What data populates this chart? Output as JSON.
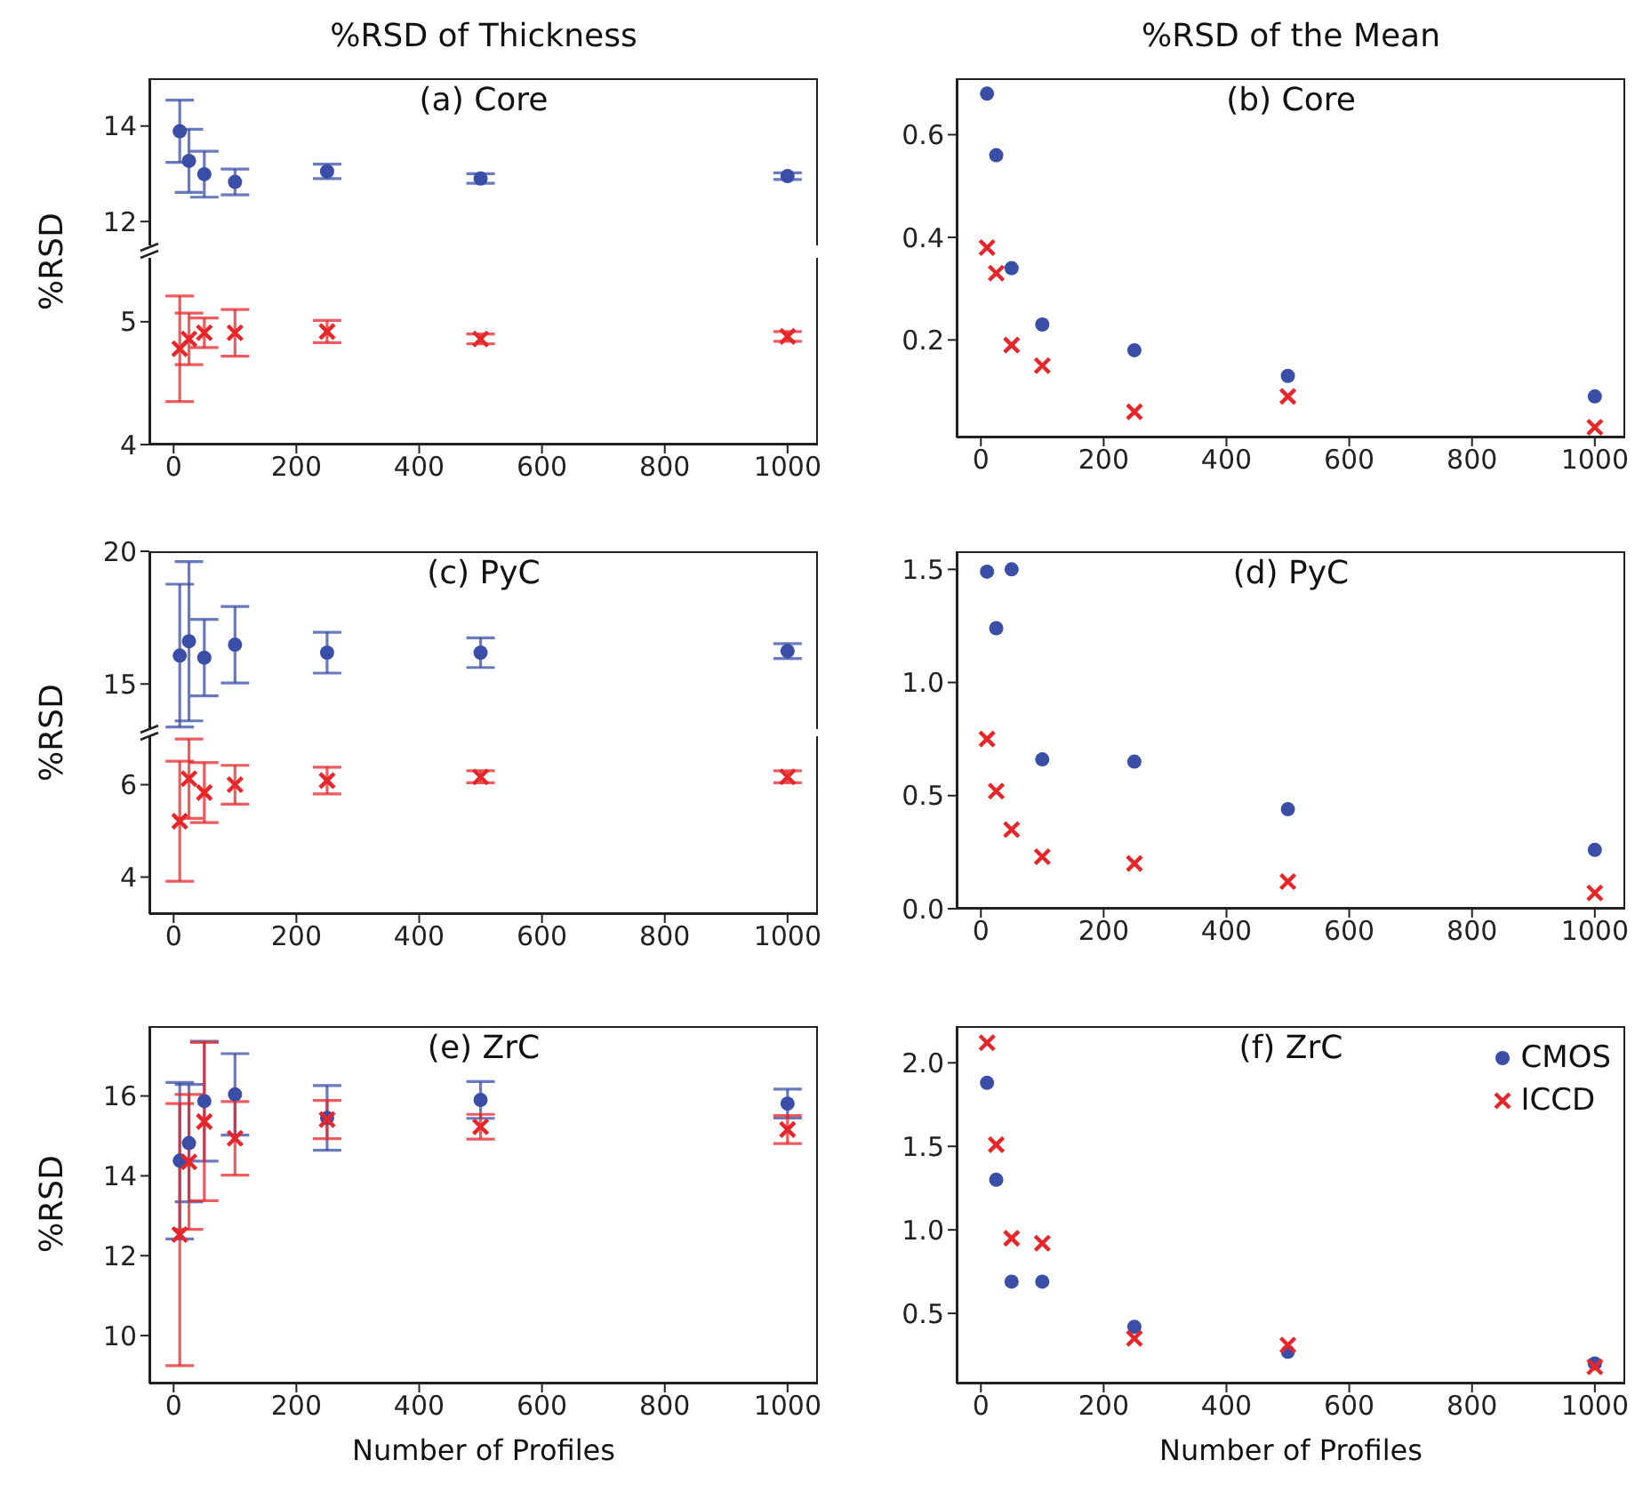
{
  "chart_data": [
    {
      "type": "scatter",
      "title": "(a) Core",
      "annotations": [
        "%RSD of Thickness"
      ],
      "x": [
        10,
        25,
        50,
        100,
        250,
        500,
        1000
      ],
      "xlim": [
        -39.5,
        1049.5
      ],
      "xticks": [
        0,
        200,
        400,
        600,
        800,
        1000
      ],
      "ylim": [
        11.5,
        15
      ],
      "yticks": [
        12,
        14
      ],
      "tick_labels": "y",
      "series": [
        {
          "color": "#3a4ea8",
          "marker": "circle",
          "values": [
            13.89,
            13.27,
            12.99,
            12.83,
            13.05,
            12.9,
            12.95
          ],
          "errors": [
            0.65,
            0.66,
            0.48,
            0.27,
            0.15,
            0.1,
            0.07
          ]
        }
      ]
    },
    {
      "type": "scatter",
      "ylabel": "%RSD",
      "x": [
        10,
        25,
        50,
        100,
        250,
        500,
        1000
      ],
      "xlim": [
        -39.5,
        1049.5
      ],
      "xticks": [
        0,
        200,
        400,
        600,
        800,
        1000
      ],
      "ylim": [
        4,
        5.52
      ],
      "yticks": [
        4,
        5
      ],
      "series": [
        {
          "color": "#e8262a",
          "marker": "cross",
          "values": [
            4.78,
            4.86,
            4.91,
            4.91,
            4.92,
            4.86,
            4.88
          ],
          "errors": [
            0.43,
            0.21,
            0.12,
            0.19,
            0.09,
            0.04,
            0.04
          ]
        }
      ]
    },
    {
      "type": "scatter",
      "title": "(b) Core",
      "annotations": [
        "%RSD of the Mean"
      ],
      "x": [
        10,
        25,
        50,
        100,
        250,
        500,
        1000
      ],
      "xlim": [
        -39.5,
        1049.5
      ],
      "xticks": [
        0,
        200,
        400,
        600,
        800,
        1000
      ],
      "ylim": [
        0.01,
        0.71
      ],
      "yticks": [
        0.2,
        0.4,
        0.6
      ],
      "series": [
        {
          "color": "#3a4ea8",
          "marker": "circle",
          "values": [
            0.68,
            0.56,
            0.34,
            0.23,
            0.18,
            0.13,
            0.09
          ]
        },
        {
          "color": "#e8262a",
          "marker": "cross",
          "values": [
            0.38,
            0.33,
            0.19,
            0.15,
            0.06,
            0.09,
            0.03
          ]
        }
      ]
    },
    {
      "type": "scatter",
      "title": "(c) PyC",
      "x": [
        10,
        25,
        50,
        100,
        250,
        500,
        1000
      ],
      "xlim": [
        -39.5,
        1049.5
      ],
      "xticks": [
        0,
        200,
        400,
        600,
        800,
        1000
      ],
      "ylim": [
        13.3,
        20
      ],
      "yticks": [
        15,
        20
      ],
      "tick_labels": "y",
      "series": [
        {
          "color": "#3a4ea8",
          "marker": "circle",
          "values": [
            16.07,
            16.61,
            15.99,
            16.48,
            16.18,
            16.18,
            16.24
          ],
          "errors": [
            2.69,
            3.0,
            1.44,
            1.44,
            0.77,
            0.56,
            0.28
          ]
        }
      ]
    },
    {
      "type": "scatter",
      "ylabel": "%RSD",
      "x": [
        10,
        25,
        50,
        100,
        250,
        500,
        1000
      ],
      "xlim": [
        -39.5,
        1049.5
      ],
      "xticks": [
        0,
        200,
        400,
        600,
        800,
        1000
      ],
      "ylim": [
        3.2,
        7.05
      ],
      "yticks": [
        4,
        6
      ],
      "series": [
        {
          "color": "#e8262a",
          "marker": "cross",
          "values": [
            5.21,
            6.13,
            5.83,
            6.0,
            6.09,
            6.17,
            6.17
          ],
          "errors": [
            1.3,
            0.86,
            0.65,
            0.42,
            0.29,
            0.13,
            0.13
          ]
        }
      ]
    },
    {
      "type": "scatter",
      "title": "(d) PyC",
      "x": [
        10,
        25,
        50,
        100,
        250,
        500,
        1000
      ],
      "xlim": [
        -39.5,
        1049.5
      ],
      "xticks": [
        0,
        200,
        400,
        600,
        800,
        1000
      ],
      "ylim": [
        0,
        1.58
      ],
      "yticks": [
        {
          "value": 0,
          "label": "0.0"
        },
        0.5,
        {
          "value": 1,
          "label": "1.0"
        },
        1.5
      ],
      "series": [
        {
          "color": "#3a4ea8",
          "marker": "circle",
          "values": [
            1.49,
            1.24,
            1.5,
            0.66,
            0.65,
            0.44,
            0.26
          ]
        },
        {
          "color": "#e8262a",
          "marker": "cross",
          "values": [
            0.75,
            0.52,
            0.35,
            0.23,
            0.2,
            0.12,
            0.07
          ]
        }
      ]
    },
    {
      "type": "scatter",
      "title": "(e) ZrC",
      "xlabel": "Number of Profiles",
      "ylabel": "%RSD",
      "x": [
        10,
        25,
        50,
        100,
        250,
        500,
        1000
      ],
      "xlim": [
        -39.5,
        1049.5
      ],
      "xticks": [
        0,
        200,
        400,
        600,
        800,
        1000
      ],
      "ylim": [
        8.8,
        17.75
      ],
      "yticks": [
        10,
        12,
        14,
        16
      ],
      "series": [
        {
          "color": "#3a4ea8",
          "marker": "circle",
          "values": [
            14.38,
            14.82,
            15.87,
            16.04,
            15.45,
            15.9,
            15.81
          ],
          "errors": [
            1.96,
            1.47,
            1.5,
            1.02,
            0.81,
            0.46,
            0.36
          ]
        },
        {
          "color": "#e8262a",
          "marker": "cross",
          "values": [
            12.53,
            14.35,
            15.36,
            14.94,
            15.41,
            15.23,
            15.16
          ],
          "errors": [
            3.28,
            1.69,
            1.98,
            0.92,
            0.48,
            0.31,
            0.35
          ]
        }
      ]
    },
    {
      "type": "scatter",
      "title": "(f) ZrC",
      "xlabel": "Number of Profiles",
      "legend": "top right",
      "x": [
        10,
        25,
        50,
        100,
        250,
        500,
        1000
      ],
      "xlim": [
        -39.5,
        1049.5
      ],
      "xticks": [
        0,
        200,
        400,
        600,
        800,
        1000
      ],
      "ylim": [
        0.08,
        2.22
      ],
      "yticks": [
        0.5,
        {
          "value": 1,
          "label": "1.0"
        },
        1.5,
        {
          "value": 2,
          "label": "2.0"
        }
      ],
      "series": [
        {
          "name": "CMOS",
          "color": "#3a4ea8",
          "marker": "circle",
          "values": [
            1.88,
            1.3,
            0.69,
            0.69,
            0.42,
            0.27,
            0.2
          ]
        },
        {
          "name": "ICCD",
          "color": "#e8262a",
          "marker": "cross",
          "values": [
            2.12,
            1.51,
            0.95,
            0.92,
            0.35,
            0.31,
            0.18
          ]
        }
      ]
    }
  ]
}
